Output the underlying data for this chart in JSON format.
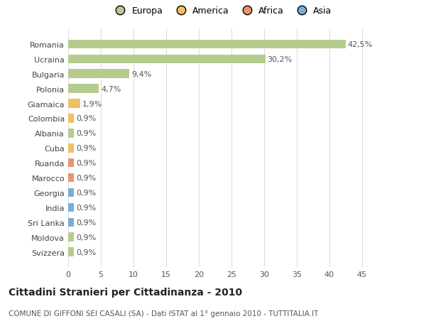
{
  "categories": [
    "Svizzera",
    "Moldova",
    "Sri Lanka",
    "India",
    "Georgia",
    "Marocco",
    "Ruanda",
    "Cuba",
    "Albania",
    "Colombia",
    "Giamaica",
    "Polonia",
    "Bulgaria",
    "Ucraina",
    "Romania"
  ],
  "values": [
    0.9,
    0.9,
    0.9,
    0.9,
    0.9,
    0.9,
    0.9,
    0.9,
    0.9,
    0.9,
    1.9,
    4.7,
    9.4,
    30.2,
    42.5
  ],
  "labels": [
    "0,9%",
    "0,9%",
    "0,9%",
    "0,9%",
    "0,9%",
    "0,9%",
    "0,9%",
    "0,9%",
    "0,9%",
    "0,9%",
    "1,9%",
    "4,7%",
    "9,4%",
    "30,2%",
    "42,5%"
  ],
  "colors": [
    "#b5cc8e",
    "#b5cc8e",
    "#7badd4",
    "#7badd4",
    "#7badd4",
    "#e8956d",
    "#e8956d",
    "#f0c060",
    "#b5cc8e",
    "#f0c060",
    "#f0c060",
    "#b5cc8e",
    "#b5cc8e",
    "#b5cc8e",
    "#b5cc8e"
  ],
  "legend_labels": [
    "Europa",
    "America",
    "Africa",
    "Asia"
  ],
  "legend_colors": [
    "#b5cc8e",
    "#f0c060",
    "#e8956d",
    "#7badd4"
  ],
  "title": "Cittadini Stranieri per Cittadinanza - 2010",
  "subtitle": "COMUNE DI GIFFONI SEI CASALI (SA) - Dati ISTAT al 1° gennaio 2010 - TUTTITALIA.IT",
  "xlim": [
    0,
    47
  ],
  "xticks": [
    0,
    5,
    10,
    15,
    20,
    25,
    30,
    35,
    40,
    45
  ],
  "background_color": "#ffffff",
  "bar_height": 0.6,
  "grid_color": "#dddddd",
  "label_fontsize": 8,
  "tick_fontsize": 8,
  "title_fontsize": 10,
  "subtitle_fontsize": 7.5
}
